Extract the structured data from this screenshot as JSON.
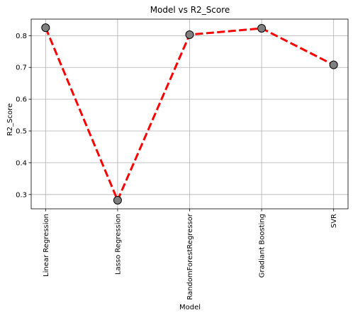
{
  "chart_data": {
    "type": "line",
    "title": "Model vs R2_Score",
    "xlabel": "Model",
    "ylabel": "R2_Score",
    "categories": [
      "Linear Regression",
      "Lasso Regression",
      "RandomForestRegressor",
      "Gradiant Boosting",
      "SVR"
    ],
    "series": [
      {
        "values": [
          0.825,
          0.282,
          0.803,
          0.823,
          0.708
        ]
      }
    ],
    "ylim": [
      0.255,
      0.852
    ],
    "yticks": [
      0.3,
      0.4,
      0.5,
      0.6,
      0.7,
      0.8
    ],
    "ytick_labels": [
      "0.3",
      "0.4",
      "0.5",
      "0.6",
      "0.7",
      "0.8"
    ],
    "grid": true,
    "line_color": "#ff0000",
    "line_style": "dashed",
    "marker_fill": "#808080",
    "marker_edge": "#000000"
  }
}
